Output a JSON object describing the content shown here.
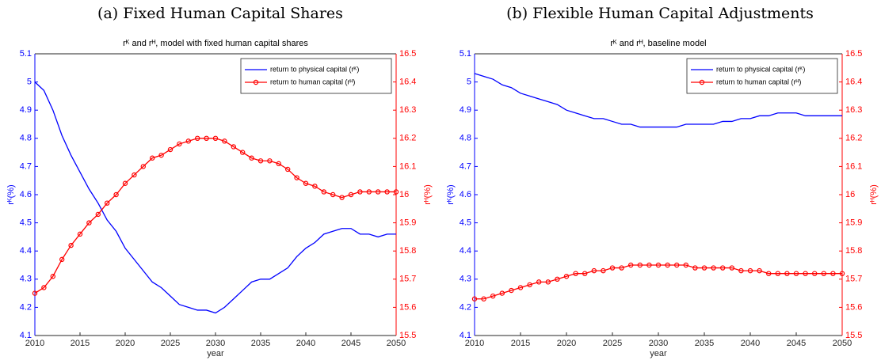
{
  "chart_data": [
    {
      "type": "line",
      "caption": "(a) Fixed Human Capital Shares",
      "title": "rᴷ and rᴴ, model with fixed human capital shares",
      "xlabel": "year",
      "ylabel": "rᴷ(%)",
      "y2label": "rᴴ(%)",
      "x": [
        2010,
        2011,
        2012,
        2013,
        2014,
        2015,
        2016,
        2017,
        2018,
        2019,
        2020,
        2021,
        2022,
        2023,
        2024,
        2025,
        2026,
        2027,
        2028,
        2029,
        2030,
        2031,
        2032,
        2033,
        2034,
        2035,
        2036,
        2037,
        2038,
        2039,
        2040,
        2041,
        2042,
        2043,
        2044,
        2045,
        2046,
        2047,
        2048,
        2049,
        2050
      ],
      "xlim": [
        2010,
        2050
      ],
      "xticks": [
        2010,
        2015,
        2020,
        2025,
        2030,
        2035,
        2040,
        2045,
        2050
      ],
      "ylim": [
        4.1,
        5.1
      ],
      "yticks": [
        4.1,
        4.2,
        4.3,
        4.4,
        4.5,
        4.6,
        4.7,
        4.8,
        4.9,
        5,
        5.1
      ],
      "y2lim": [
        15.5,
        16.5
      ],
      "y2ticks": [
        15.5,
        15.6,
        15.7,
        15.8,
        15.9,
        16,
        16.1,
        16.2,
        16.3,
        16.4,
        16.5
      ],
      "legend": "northeast",
      "series": [
        {
          "name": "return to physical capital (rᴷ)",
          "color": "#0000ff",
          "axis": "y",
          "marker": "none",
          "values": [
            5.0,
            4.97,
            4.9,
            4.81,
            4.74,
            4.68,
            4.62,
            4.57,
            4.51,
            4.47,
            4.41,
            4.37,
            4.33,
            4.29,
            4.27,
            4.24,
            4.21,
            4.2,
            4.19,
            4.19,
            4.18,
            4.2,
            4.23,
            4.26,
            4.29,
            4.3,
            4.3,
            4.32,
            4.34,
            4.38,
            4.41,
            4.43,
            4.46,
            4.47,
            4.48,
            4.48,
            4.46,
            4.46,
            4.45,
            4.46,
            4.46
          ]
        },
        {
          "name": "return to human capital (rᴴ)",
          "color": "#ff0000",
          "axis": "y2",
          "marker": "circle",
          "values": [
            15.65,
            15.67,
            15.71,
            15.77,
            15.82,
            15.86,
            15.9,
            15.93,
            15.97,
            16.0,
            16.04,
            16.07,
            16.1,
            16.13,
            16.14,
            16.16,
            16.18,
            16.19,
            16.2,
            16.2,
            16.2,
            16.19,
            16.17,
            16.15,
            16.13,
            16.12,
            16.12,
            16.11,
            16.09,
            16.06,
            16.04,
            16.03,
            16.01,
            16.0,
            15.99,
            16.0,
            16.01,
            16.01,
            16.01,
            16.01,
            16.01
          ]
        }
      ]
    },
    {
      "type": "line",
      "caption": "(b) Flexible Human Capital Adjustments",
      "title": "rᴷ and rᴴ, baseline model",
      "xlabel": "year",
      "ylabel": "rᴷ(%)",
      "y2label": "rᴴ(%)",
      "x": [
        2010,
        2011,
        2012,
        2013,
        2014,
        2015,
        2016,
        2017,
        2018,
        2019,
        2020,
        2021,
        2022,
        2023,
        2024,
        2025,
        2026,
        2027,
        2028,
        2029,
        2030,
        2031,
        2032,
        2033,
        2034,
        2035,
        2036,
        2037,
        2038,
        2039,
        2040,
        2041,
        2042,
        2043,
        2044,
        2045,
        2046,
        2047,
        2048,
        2049,
        2050
      ],
      "xlim": [
        2010,
        2050
      ],
      "xticks": [
        2010,
        2015,
        2020,
        2025,
        2030,
        2035,
        2040,
        2045,
        2050
      ],
      "ylim": [
        4.1,
        5.1
      ],
      "yticks": [
        4.1,
        4.2,
        4.3,
        4.4,
        4.5,
        4.6,
        4.7,
        4.8,
        4.9,
        5,
        5.1
      ],
      "y2lim": [
        15.5,
        16.5
      ],
      "y2ticks": [
        15.5,
        15.6,
        15.7,
        15.8,
        15.9,
        16,
        16.1,
        16.2,
        16.3,
        16.4,
        16.5
      ],
      "legend": "northeast",
      "series": [
        {
          "name": "return to physical capital (rᴷ)",
          "color": "#0000ff",
          "axis": "y",
          "marker": "none",
          "values": [
            5.03,
            5.02,
            5.01,
            4.99,
            4.98,
            4.96,
            4.95,
            4.94,
            4.93,
            4.92,
            4.9,
            4.89,
            4.88,
            4.87,
            4.87,
            4.86,
            4.85,
            4.85,
            4.84,
            4.84,
            4.84,
            4.84,
            4.84,
            4.85,
            4.85,
            4.85,
            4.85,
            4.86,
            4.86,
            4.87,
            4.87,
            4.88,
            4.88,
            4.89,
            4.89,
            4.89,
            4.88,
            4.88,
            4.88,
            4.88,
            4.88
          ]
        },
        {
          "name": "return to human capital (rᴴ)",
          "color": "#ff0000",
          "axis": "y2",
          "marker": "circle",
          "values": [
            15.63,
            15.63,
            15.64,
            15.65,
            15.66,
            15.67,
            15.68,
            15.69,
            15.69,
            15.7,
            15.71,
            15.72,
            15.72,
            15.73,
            15.73,
            15.74,
            15.74,
            15.75,
            15.75,
            15.75,
            15.75,
            15.75,
            15.75,
            15.75,
            15.74,
            15.74,
            15.74,
            15.74,
            15.74,
            15.73,
            15.73,
            15.73,
            15.72,
            15.72,
            15.72,
            15.72,
            15.72,
            15.72,
            15.72,
            15.72,
            15.72
          ]
        }
      ]
    }
  ]
}
